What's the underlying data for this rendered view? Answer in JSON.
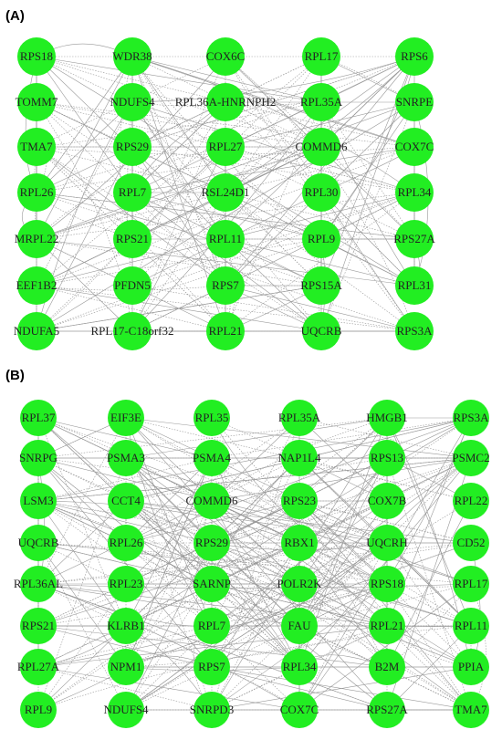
{
  "panels": [
    {
      "label": "(A)",
      "rows": [
        [
          "RPS18",
          "WDR38",
          "COX6C",
          "RPL17",
          "RPS6"
        ],
        [
          "TOMM7",
          "NDUFS4",
          "RPL36A-HNRNPH2",
          "RPL35A",
          "SNRPE"
        ],
        [
          "TMA7",
          "RPS29",
          "RPL27",
          "COMMD6",
          "COX7C"
        ],
        [
          "RPL26",
          "RPL7",
          "RSL24D1",
          "RPL30",
          "RPL34"
        ],
        [
          "MRPL22",
          "RPS21",
          "RPL11",
          "RPL9",
          "RPS27A"
        ],
        [
          "EEF1B2",
          "PFDN5",
          "RPS7",
          "RPS15A",
          "RPL31"
        ],
        [
          "NDUFA5",
          "RPL17-C18orf32",
          "RPL21",
          "UQCRB",
          "RPS3A"
        ]
      ]
    },
    {
      "label": "(B)",
      "rows": [
        [
          "RPL37",
          "EIF3E",
          "RPL35",
          "RPL35A",
          "HMGB1",
          "RPS3A"
        ],
        [
          "SNRPG",
          "PSMA3",
          "PSMA4",
          "NAP1L4",
          "RPS13",
          "PSMC2"
        ],
        [
          "LSM3",
          "CCT4",
          "COMMD6",
          "RPS23",
          "COX7B",
          "RPL22"
        ],
        [
          "UQCRB",
          "RPL26",
          "RPS29",
          "RBX1",
          "UQCRH",
          "CD52"
        ],
        [
          "RPL36AL",
          "RPL23",
          "SARNP",
          "POLR2K",
          "RPS18",
          "RPL17"
        ],
        [
          "RPS21",
          "KLRB1",
          "RPL7",
          "FAU",
          "RPL21",
          "RPL11"
        ],
        [
          "RPL27A",
          "NPM1",
          "RPS7",
          "RPL34",
          "B2M",
          "PPIA"
        ],
        [
          "RPL9",
          "NDUFS4",
          "SNRPD3",
          "COX7C",
          "RPS27A",
          "TMA7"
        ]
      ]
    }
  ]
}
